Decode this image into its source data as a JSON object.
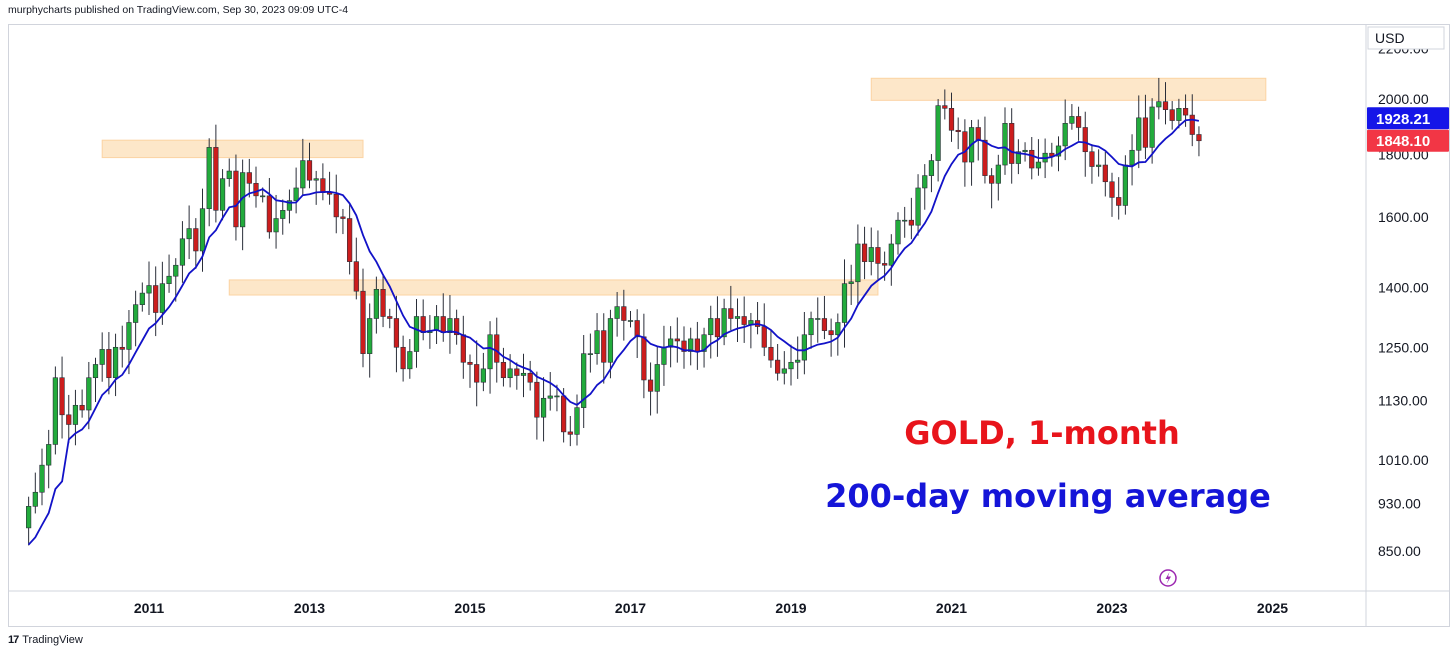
{
  "header": {
    "published_text": "murphycharts published on TradingView.com, Sep 30, 2023 09:09 UTC-4"
  },
  "footer": {
    "brand": "TradingView",
    "logo_glyph": "17"
  },
  "chart_data": {
    "type": "candlestick",
    "currency": "USD",
    "scale": "log",
    "y_ticks": [
      850,
      930,
      1010,
      1130,
      1250,
      1400,
      1600,
      1800,
      2000,
      2200
    ],
    "y_tick_labels": [
      "850.00",
      "930.00",
      "1010.00",
      "1130.00",
      "1250.00",
      "1400.00",
      "1600.00",
      "1800.00",
      "2000.00",
      "2200.00"
    ],
    "x_ticks": [
      "2011",
      "2013",
      "2015",
      "2017",
      "2019",
      "2021",
      "2023",
      "2025"
    ],
    "price_labels": {
      "ma_value": "1928.21",
      "last_price": "1848.10",
      "ma_color": "#1515e8",
      "last_color": "#f23645"
    },
    "annotations": {
      "title": "GOLD, 1-month",
      "title_color": "#e8141b",
      "subtitle": "200-day moving average",
      "subtitle_color": "#1515d8"
    },
    "resistance_zones": [
      {
        "start": "2010-06",
        "end": "2013-09",
        "low": 1790,
        "high": 1850
      },
      {
        "start": "2012-01",
        "end": "2020-02",
        "low": 1380,
        "high": 1420
      },
      {
        "start": "2020-01",
        "end": "2024-12",
        "low": 1995,
        "high": 2080
      }
    ],
    "colors": {
      "up": "#22ab3c",
      "down": "#cc1d1d",
      "ma": "#1212c8",
      "zone": "#fde7c9",
      "zone_edge": "#fbd3a3"
    },
    "candles": {
      "start_month": "2009-07",
      "closes": [
        925,
        950,
        1000,
        1040,
        1180,
        1100,
        1080,
        1120,
        1110,
        1180,
        1210,
        1245,
        1180,
        1250,
        1245,
        1310,
        1355,
        1385,
        1405,
        1335,
        1410,
        1430,
        1460,
        1535,
        1565,
        1500,
        1625,
        1825,
        1620,
        1720,
        1745,
        1570,
        1740,
        1705,
        1665,
        1665,
        1555,
        1595,
        1620,
        1650,
        1690,
        1780,
        1715,
        1720,
        1675,
        1670,
        1600,
        1595,
        1470,
        1390,
        1235,
        1320,
        1395,
        1325,
        1320,
        1250,
        1200,
        1240,
        1325,
        1285,
        1290,
        1325,
        1285,
        1320,
        1280,
        1215,
        1210,
        1170,
        1200,
        1280,
        1215,
        1180,
        1200,
        1185,
        1190,
        1170,
        1095,
        1135,
        1140,
        1140,
        1065,
        1060,
        1115,
        1235,
        1235,
        1290,
        1215,
        1320,
        1350,
        1315,
        1315,
        1275,
        1175,
        1150,
        1210,
        1250,
        1270,
        1265,
        1240,
        1270,
        1240,
        1280,
        1320,
        1275,
        1345,
        1320,
        1325,
        1305,
        1315,
        1300,
        1250,
        1220,
        1190,
        1200,
        1215,
        1220,
        1280,
        1320,
        1320,
        1290,
        1280,
        1310,
        1410,
        1415,
        1520,
        1470,
        1510,
        1465,
        1460,
        1520,
        1590,
        1590,
        1575,
        1690,
        1730,
        1780,
        1975,
        1965,
        1885,
        1880,
        1775,
        1895,
        1850,
        1730,
        1705,
        1765,
        1910,
        1770,
        1810,
        1815,
        1755,
        1775,
        1805,
        1795,
        1830,
        1910,
        1935,
        1895,
        1810,
        1760,
        1765,
        1710,
        1660,
        1635,
        1765,
        1815,
        1930,
        1825,
        1970,
        1990,
        1960,
        1920,
        1965,
        1940,
        1870,
        1848
      ]
    }
  }
}
